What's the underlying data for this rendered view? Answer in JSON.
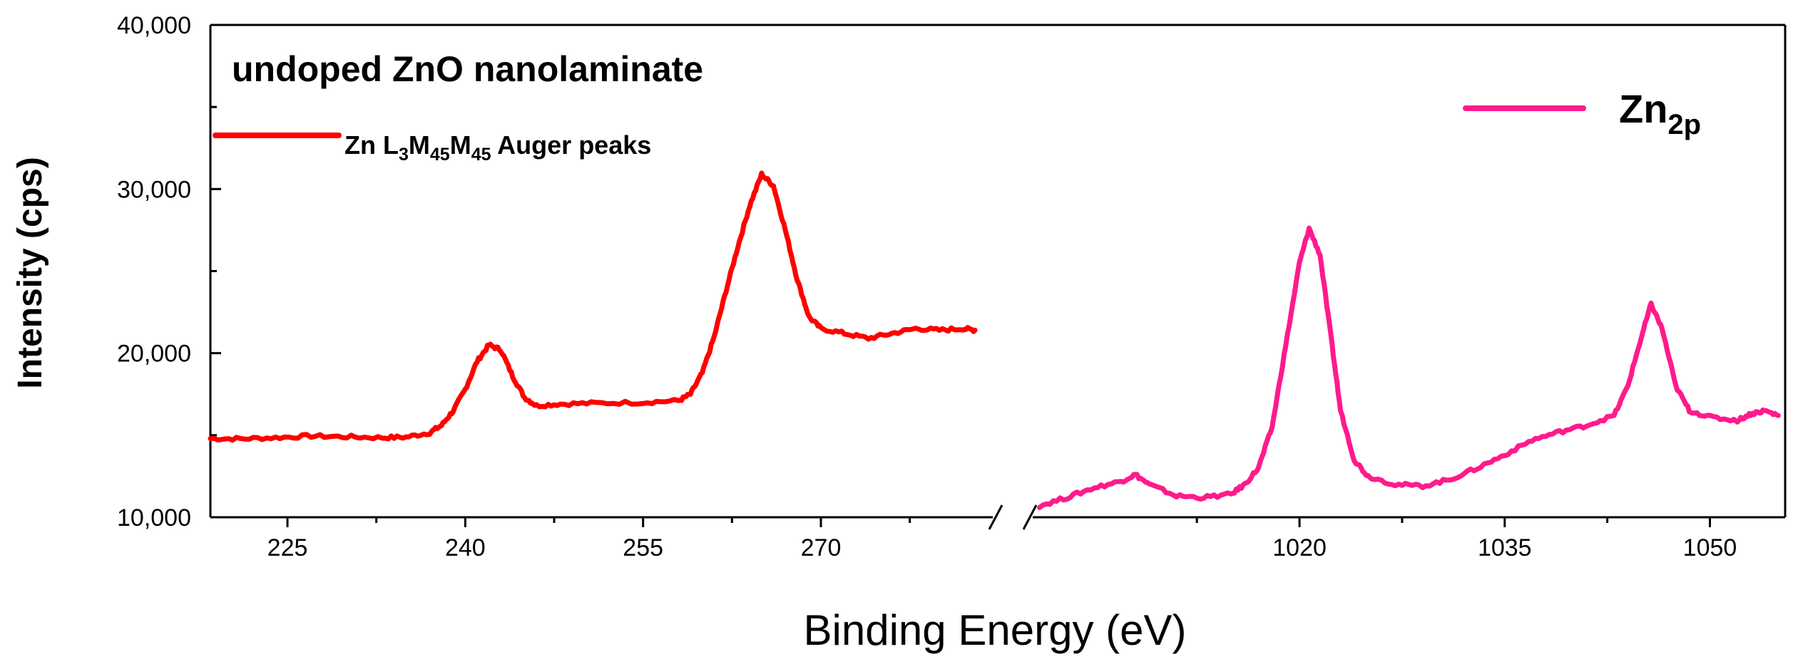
{
  "chart_data": {
    "type": "line",
    "annotation": "undoped ZnO nanolaminate",
    "xlabel": "Binding Energy (eV)",
    "ylabel": "Intensity (cps)",
    "ylim": [
      10000,
      40000
    ],
    "yticks": [
      10000,
      20000,
      30000,
      40000
    ],
    "ytick_labels": [
      "10,000",
      "20,000",
      "30,000",
      "40,000"
    ],
    "axis_break": true,
    "left_segment": {
      "xlim": [
        218.5,
        284.5
      ],
      "xticks": [
        225,
        240,
        255,
        270
      ],
      "xtick_labels": [
        "225",
        "240",
        "255",
        "270"
      ]
    },
    "right_segment": {
      "xlim": [
        1000.5,
        1055.5
      ],
      "xticks": [
        1020,
        1035,
        1050
      ],
      "xtick_labels": [
        "1020",
        "1035",
        "1050"
      ]
    },
    "legend_placement": "top",
    "series": [
      {
        "name_parts": [
          "Zn L",
          "3",
          "M",
          "45",
          "M",
          "45",
          " Auger peaks"
        ],
        "color": "#ff0000",
        "segment": "left",
        "points": [
          [
            218.5,
            14800
          ],
          [
            221,
            14780
          ],
          [
            224,
            14850
          ],
          [
            227,
            14950
          ],
          [
            230,
            14900
          ],
          [
            233,
            14850
          ],
          [
            235,
            14880
          ],
          [
            237,
            15150
          ],
          [
            238,
            15600
          ],
          [
            239,
            16500
          ],
          [
            240,
            17800
          ],
          [
            241,
            19500
          ],
          [
            242,
            20500
          ],
          [
            243,
            20200
          ],
          [
            244,
            18600
          ],
          [
            245,
            17300
          ],
          [
            246,
            16800
          ],
          [
            248,
            16900
          ],
          [
            251,
            16950
          ],
          [
            255,
            17000
          ],
          [
            258,
            17100
          ],
          [
            259,
            17500
          ],
          [
            260,
            18800
          ],
          [
            261,
            21000
          ],
          [
            262,
            23800
          ],
          [
            263,
            26500
          ],
          [
            264,
            29000
          ],
          [
            265,
            30900
          ],
          [
            266,
            30200
          ],
          [
            267,
            27500
          ],
          [
            268,
            24500
          ],
          [
            269,
            22200
          ],
          [
            270,
            21500
          ],
          [
            272,
            21200
          ],
          [
            274,
            20900
          ],
          [
            276,
            21200
          ],
          [
            278,
            21500
          ],
          [
            280,
            21400
          ],
          [
            282,
            21500
          ],
          [
            283,
            21400
          ]
        ]
      },
      {
        "name_parts": [
          "Zn",
          "2p"
        ],
        "color": "#ff1a8c",
        "segment": "right",
        "points": [
          [
            1001,
            10700
          ],
          [
            1003,
            11200
          ],
          [
            1005,
            11800
          ],
          [
            1007,
            12200
          ],
          [
            1008,
            12600
          ],
          [
            1009,
            12000
          ],
          [
            1011,
            11300
          ],
          [
            1013,
            11200
          ],
          [
            1015,
            11400
          ],
          [
            1016,
            12000
          ],
          [
            1017,
            13000
          ],
          [
            1018,
            15500
          ],
          [
            1019,
            20500
          ],
          [
            1020,
            25500
          ],
          [
            1020.7,
            27600
          ],
          [
            1021.5,
            26000
          ],
          [
            1022.3,
            21000
          ],
          [
            1023,
            16500
          ],
          [
            1024,
            13500
          ],
          [
            1025,
            12500
          ],
          [
            1027,
            12000
          ],
          [
            1029,
            11900
          ],
          [
            1031,
            12300
          ],
          [
            1033,
            13000
          ],
          [
            1035,
            13800
          ],
          [
            1037,
            14700
          ],
          [
            1039,
            15200
          ],
          [
            1041,
            15600
          ],
          [
            1043,
            16200
          ],
          [
            1044,
            18000
          ],
          [
            1045,
            21000
          ],
          [
            1045.7,
            23000
          ],
          [
            1046.5,
            21500
          ],
          [
            1047.5,
            18000
          ],
          [
            1048.5,
            16500
          ],
          [
            1050,
            16100
          ],
          [
            1052,
            15900
          ],
          [
            1053,
            16300
          ],
          [
            1054,
            16500
          ],
          [
            1055,
            16200
          ]
        ]
      }
    ]
  }
}
